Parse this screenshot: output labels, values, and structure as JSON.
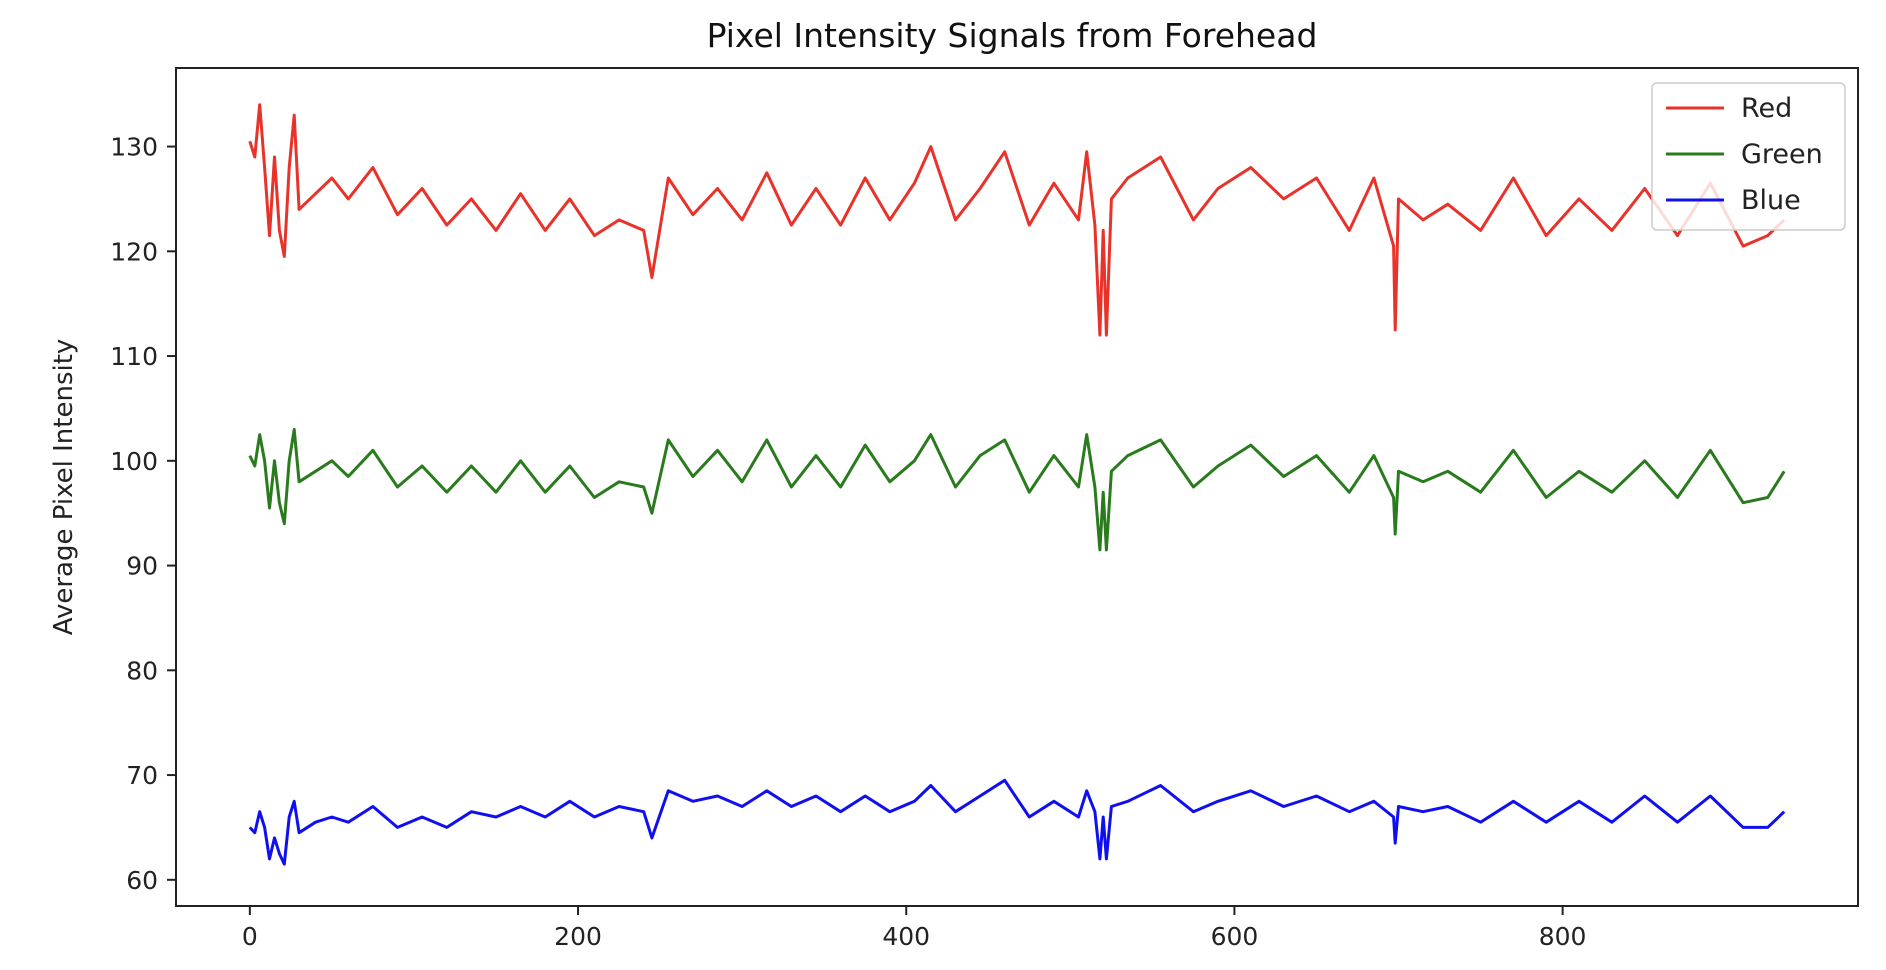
{
  "chart_data": {
    "type": "line",
    "title": "Pixel Intensity Signals from Forehead",
    "xlabel": "",
    "ylabel": "Average Pixel Intensity",
    "xlim": [
      -45,
      980
    ],
    "ylim": [
      57.5,
      137.5
    ],
    "x_ticks": [
      0,
      200,
      400,
      600,
      800
    ],
    "y_ticks": [
      60,
      70,
      80,
      90,
      100,
      110,
      120,
      130
    ],
    "grid": false,
    "legend_position": "top-right",
    "x": [
      0,
      3,
      6,
      9,
      12,
      15,
      18,
      21,
      24,
      27,
      30,
      40,
      50,
      60,
      75,
      90,
      105,
      120,
      135,
      150,
      165,
      180,
      195,
      210,
      225,
      240,
      245,
      255,
      270,
      285,
      300,
      315,
      330,
      345,
      360,
      375,
      390,
      405,
      415,
      430,
      445,
      460,
      475,
      490,
      505,
      510,
      515,
      518,
      520,
      522,
      525,
      535,
      555,
      575,
      590,
      610,
      630,
      650,
      670,
      685,
      697,
      698,
      700,
      715,
      730,
      750,
      770,
      790,
      810,
      830,
      850,
      870,
      890,
      910,
      925,
      935
    ],
    "series": [
      {
        "name": "Red",
        "color": "#e8322a",
        "values": [
          130.5,
          129.0,
          134.0,
          128.0,
          121.5,
          129.0,
          122.0,
          119.5,
          128.0,
          133.0,
          124.0,
          125.5,
          127.0,
          125.0,
          128.0,
          123.5,
          126.0,
          122.5,
          125.0,
          122.0,
          125.5,
          122.0,
          125.0,
          121.5,
          123.0,
          122.0,
          117.5,
          127.0,
          123.5,
          126.0,
          123.0,
          127.5,
          122.5,
          126.0,
          122.5,
          127.0,
          123.0,
          126.5,
          130.0,
          123.0,
          126.0,
          129.5,
          122.5,
          126.5,
          123.0,
          129.5,
          122.5,
          112.0,
          122.0,
          112.0,
          125.0,
          127.0,
          129.0,
          123.0,
          126.0,
          128.0,
          125.0,
          127.0,
          122.0,
          127.0,
          120.5,
          112.5,
          125.0,
          123.0,
          124.5,
          122.0,
          127.0,
          121.5,
          125.0,
          122.0,
          126.0,
          121.5,
          126.5,
          120.5,
          121.5,
          123.0
        ]
      },
      {
        "name": "Green",
        "color": "#2a7a1e",
        "values": [
          100.5,
          99.5,
          102.5,
          100.0,
          95.5,
          100.0,
          96.0,
          94.0,
          100.0,
          103.0,
          98.0,
          99.0,
          100.0,
          98.5,
          101.0,
          97.5,
          99.5,
          97.0,
          99.5,
          97.0,
          100.0,
          97.0,
          99.5,
          96.5,
          98.0,
          97.5,
          95.0,
          102.0,
          98.5,
          101.0,
          98.0,
          102.0,
          97.5,
          100.5,
          97.5,
          101.5,
          98.0,
          100.0,
          102.5,
          97.5,
          100.5,
          102.0,
          97.0,
          100.5,
          97.5,
          102.5,
          97.5,
          91.5,
          97.0,
          91.5,
          99.0,
          100.5,
          102.0,
          97.5,
          99.5,
          101.5,
          98.5,
          100.5,
          97.0,
          100.5,
          96.5,
          93.0,
          99.0,
          98.0,
          99.0,
          97.0,
          101.0,
          96.5,
          99.0,
          97.0,
          100.0,
          96.5,
          101.0,
          96.0,
          96.5,
          99.0
        ]
      },
      {
        "name": "Blue",
        "color": "#1010ee",
        "values": [
          65.0,
          64.5,
          66.5,
          65.0,
          62.0,
          64.0,
          62.5,
          61.5,
          66.0,
          67.5,
          64.5,
          65.5,
          66.0,
          65.5,
          67.0,
          65.0,
          66.0,
          65.0,
          66.5,
          66.0,
          67.0,
          66.0,
          67.5,
          66.0,
          67.0,
          66.5,
          64.0,
          68.5,
          67.5,
          68.0,
          67.0,
          68.5,
          67.0,
          68.0,
          66.5,
          68.0,
          66.5,
          67.5,
          69.0,
          66.5,
          68.0,
          69.5,
          66.0,
          67.5,
          66.0,
          68.5,
          66.5,
          62.0,
          66.0,
          62.0,
          67.0,
          67.5,
          69.0,
          66.5,
          67.5,
          68.5,
          67.0,
          68.0,
          66.5,
          67.5,
          66.0,
          63.5,
          67.0,
          66.5,
          67.0,
          65.5,
          67.5,
          65.5,
          67.5,
          65.5,
          68.0,
          65.5,
          68.0,
          65.0,
          65.0,
          66.5
        ]
      }
    ]
  }
}
